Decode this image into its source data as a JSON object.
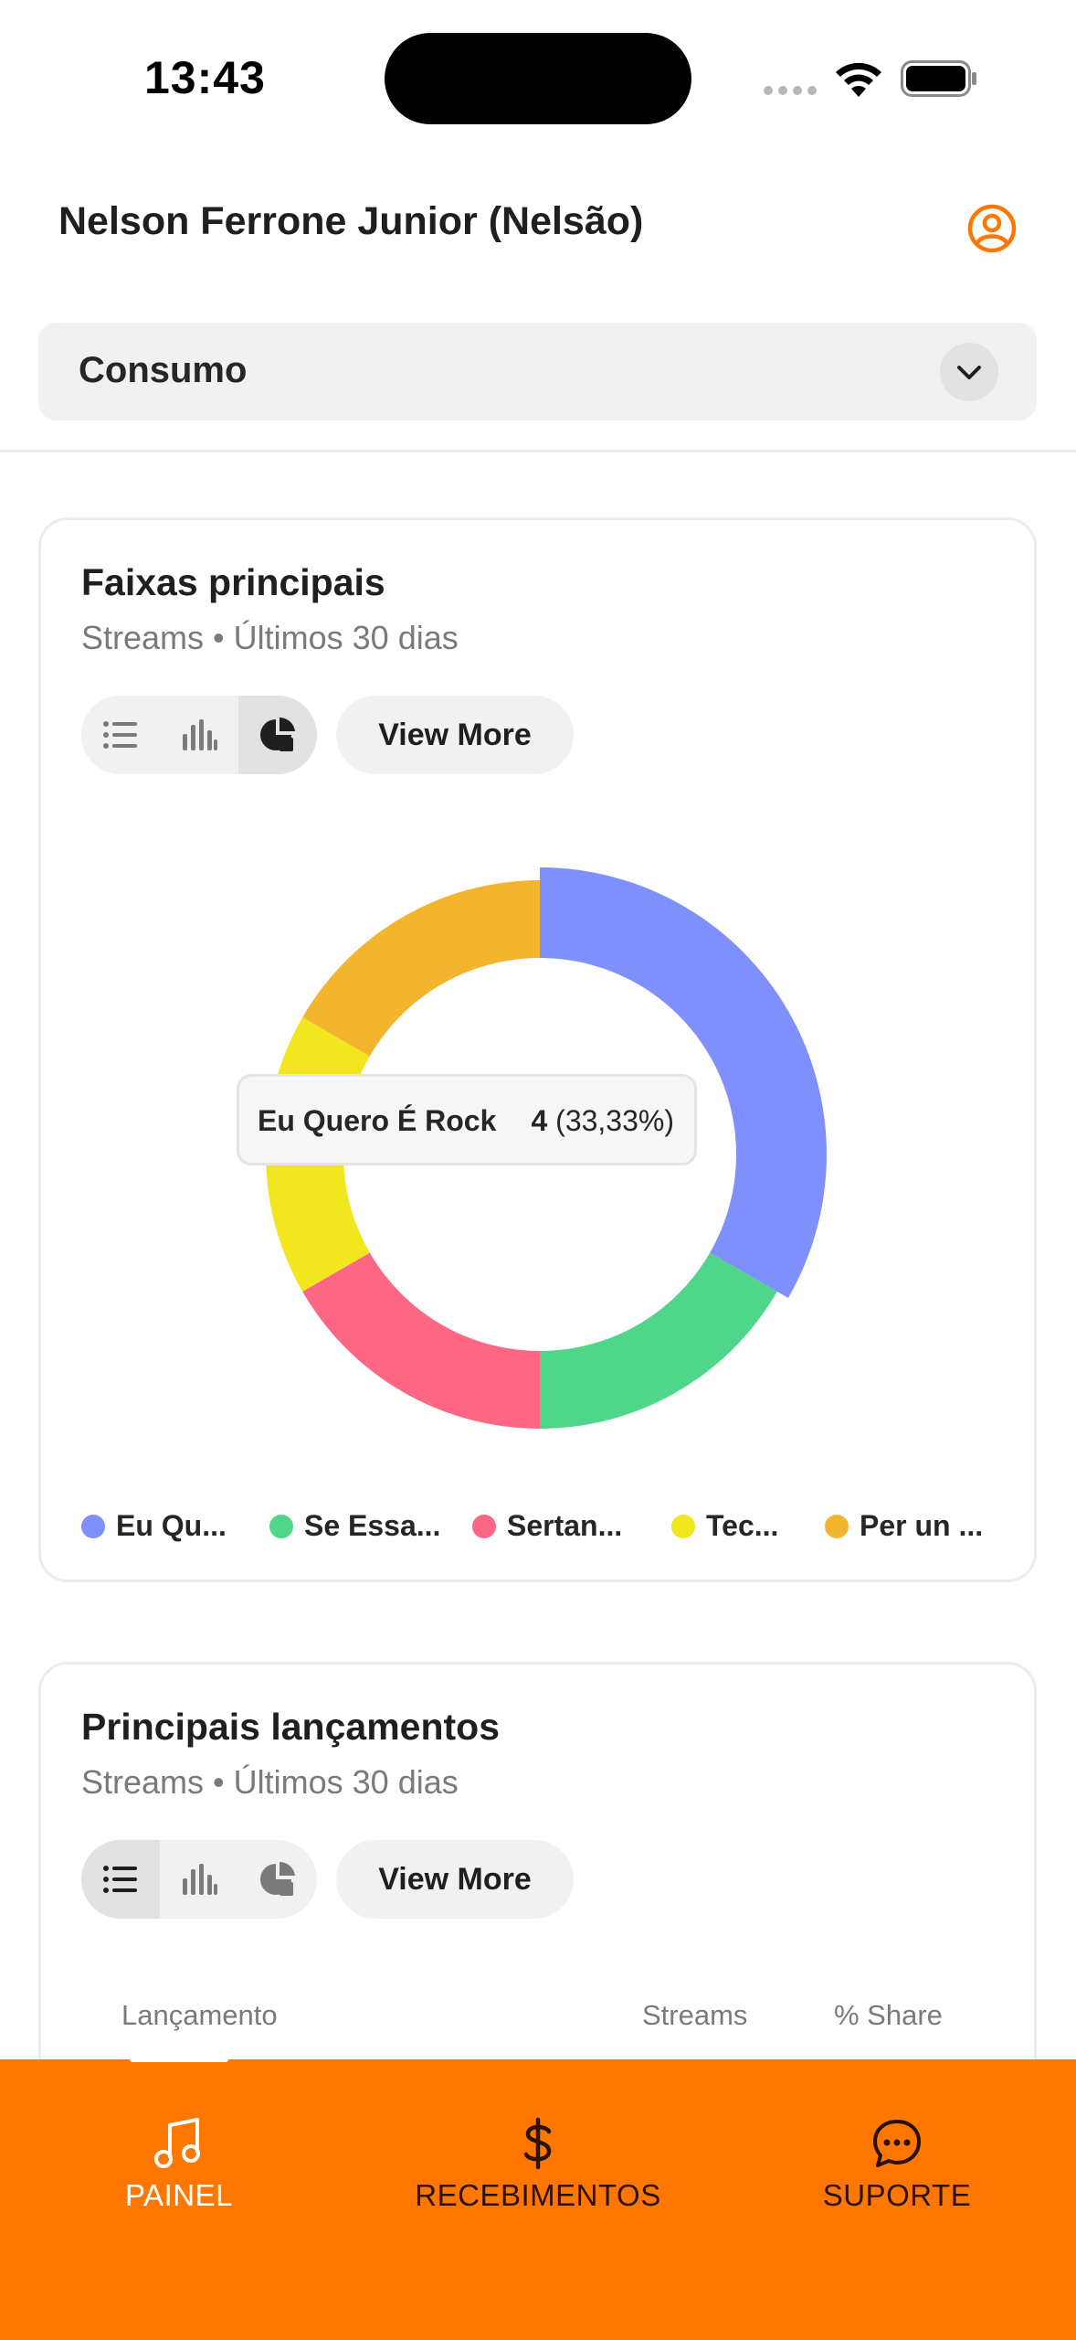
{
  "status_bar": {
    "time": "13:43"
  },
  "header": {
    "profile_name": "Nelson Ferrone Junior (Nelsão)",
    "icon": "user-circle-icon"
  },
  "dropdown": {
    "selected": "Consumo"
  },
  "card_tracks": {
    "title": "Faixas principais",
    "subtitle": "Streams • Últimos 30 dias",
    "view_more": "View More",
    "active_view": "pie",
    "tooltip": {
      "label": "Eu Quero É Rock",
      "value": "4",
      "percent": "(33,33%)"
    },
    "legend": [
      {
        "label": "Eu Qu...",
        "color": "#7f8ffc"
      },
      {
        "label": "Se Essa...",
        "color": "#4fd68a"
      },
      {
        "label": "Sertan...",
        "color": "#fd6784"
      },
      {
        "label": "Tec...",
        "color": "#f2e61e"
      },
      {
        "label": "Per un ...",
        "color": "#f4b52e"
      }
    ]
  },
  "chart_data": {
    "type": "pie",
    "variant": "donut",
    "slices": [
      {
        "value": 4,
        "color": "#7f8ffc",
        "highlighted": true
      },
      {
        "value": 2,
        "color": "#4fd68a"
      },
      {
        "value": 2,
        "color": "#fd6784"
      },
      {
        "value": 2,
        "color": "#f2e61e"
      },
      {
        "value": 2,
        "color": "#f4b52e"
      }
    ]
  },
  "card_releases": {
    "title": "Principais lançamentos",
    "subtitle": "Streams • Últimos 30 dias",
    "view_more": "View More",
    "active_view": "list",
    "columns": [
      "Lançamento",
      "Streams",
      "% Share"
    ]
  },
  "bottom_nav": {
    "items": [
      {
        "label": "PAINEL",
        "icon": "music-note-icon",
        "active": true
      },
      {
        "label": "RECEBIMENTOS",
        "icon": "dollar-icon",
        "active": false
      },
      {
        "label": "SUPORTE",
        "icon": "chat-bubble-icon",
        "active": false
      }
    ]
  },
  "colors": {
    "accent": "#ff7700"
  }
}
